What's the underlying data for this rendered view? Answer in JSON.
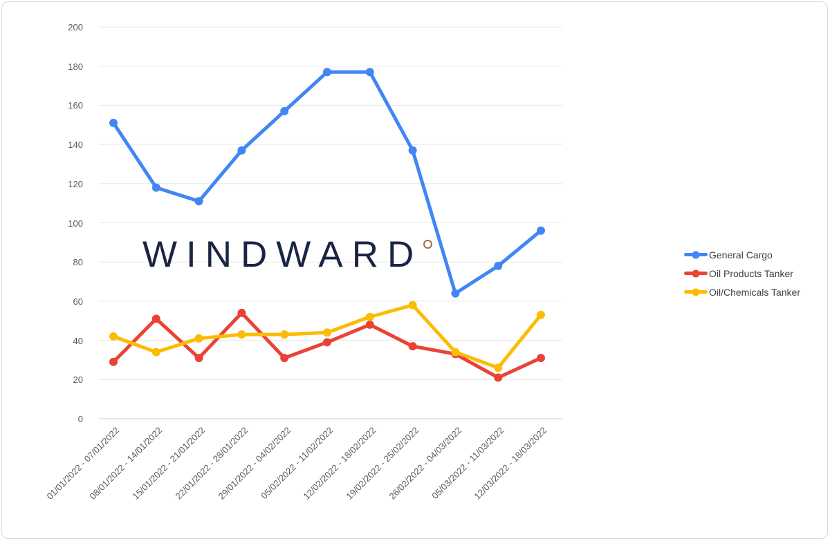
{
  "watermark": {
    "text": "WINDWARD",
    "text_color": "#1b2444",
    "ring_color": "#9c7248"
  },
  "axis": {
    "tick_label_color": "#595959",
    "gridline_color": "#e8e8e8",
    "baseline_color": "#cccccc"
  },
  "legend": {
    "text_color": "#3c4043",
    "position": "right"
  },
  "chart_data": {
    "type": "line",
    "categories": [
      "01/01/2022 - 07/01/2022",
      "08/01/2022 - 14/01/2022",
      "15/01/2022 - 21/01/2022",
      "22/01/2022 - 28/01/2022",
      "29/01/2022 - 04/02/2022",
      "05/02/2022 - 11/02/2022",
      "12/02/2022 - 18/02/2022",
      "19/02/2022 - 25/02/2022",
      "26/02/2022 - 04/03/2022",
      "05/03/2022 - 11/03/2022",
      "12/03/2022 - 18/03/2022"
    ],
    "series": [
      {
        "name": "General Cargo",
        "color": "#4285F4",
        "values": [
          151,
          118,
          111,
          137,
          157,
          177,
          177,
          137,
          64,
          78,
          96
        ]
      },
      {
        "name": "Oil Products Tanker",
        "color": "#EA4335",
        "values": [
          29,
          51,
          31,
          54,
          31,
          39,
          48,
          37,
          33,
          21,
          31
        ]
      },
      {
        "name": "Oil/Chemicals Tanker",
        "color": "#FBBC04",
        "values": [
          42,
          34,
          41,
          43,
          43,
          44,
          52,
          58,
          34,
          26,
          53
        ]
      }
    ],
    "title": "",
    "xlabel": "",
    "ylabel": "",
    "ylim": [
      0,
      200
    ],
    "yticks": [
      0,
      20,
      40,
      60,
      80,
      100,
      120,
      140,
      160,
      180,
      200
    ],
    "grid": true,
    "legend_position": "right",
    "marker_style": "circle"
  }
}
